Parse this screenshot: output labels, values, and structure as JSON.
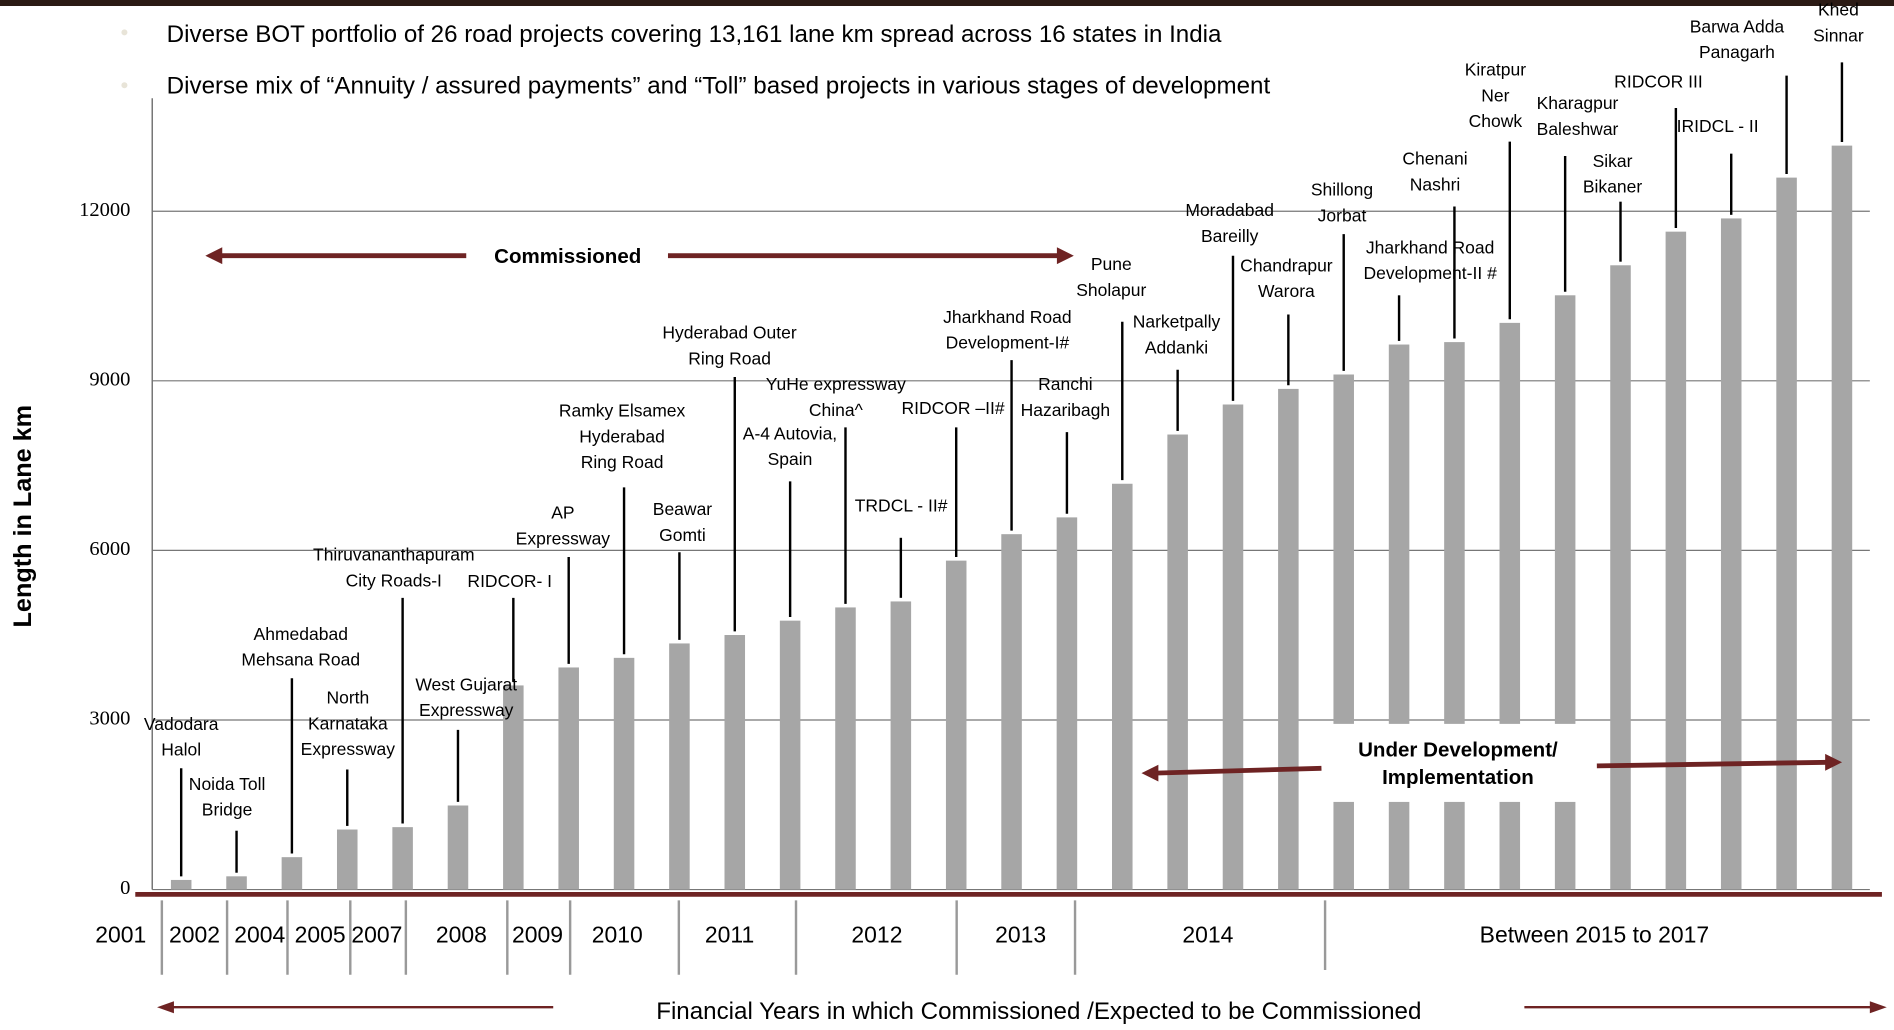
{
  "chart_data": {
    "type": "bar",
    "notes": [
      "Diverse BOT portfolio of 26 road projects covering 13,161 lane km spread across 16 states in India",
      "Diverse mix of “Annuity / assured payments” and “Toll” based  projects in various stages of development"
    ],
    "y_label": "Length in Lane km",
    "x_label": "Financial Years in which Commissioned /Expected to be Commissioned",
    "annotations": [
      "Commissioned",
      "Under Development/",
      "Implementation"
    ],
    "color": "#a6a6a6",
    "grid": true,
    "ylim": [
      0,
      14000
    ],
    "yticks": [
      0,
      3000,
      6000,
      9000,
      12000
    ],
    "bar_labels": [
      [
        "Vadodara",
        "Halol"
      ],
      [
        "Noida Toll",
        "Bridge"
      ],
      [
        "Ahmedabad",
        "Mehsana Road"
      ],
      [
        "North",
        "Karnataka",
        "Expressway"
      ],
      [
        "Thiruvananthapuram",
        "City Roads-I"
      ],
      [
        "West Gujarat",
        "Expressway"
      ],
      [
        "RIDCOR- I"
      ],
      [
        "AP",
        "Expressway"
      ],
      [
        "Ramky Elsamex",
        "Hyderabad",
        "Ring Road"
      ],
      [
        "Beawar",
        "Gomti"
      ],
      [
        "Hyderabad Outer",
        "Ring Road"
      ],
      [
        "A-4 Autovia,",
        "Spain"
      ],
      [
        "YuHe expressway",
        "China^"
      ],
      [
        "TRDCL - II#"
      ],
      [
        "RIDCOR –II#"
      ],
      [
        "Jharkhand Road",
        "Development-I#"
      ],
      [
        "Ranchi",
        "Hazaribagh"
      ],
      [
        "Pune",
        "Sholapur"
      ],
      [
        "Narketpally",
        "Addanki"
      ],
      [
        "Moradabad",
        "Bareilly"
      ],
      [
        "Chandrapur",
        "Warora"
      ],
      [
        "Shillong",
        "Jorbat"
      ],
      [
        "Jharkhand Road",
        "Development-II #"
      ],
      [
        "Chenani",
        "Nashri"
      ],
      [
        "Kiratpur",
        "Ner",
        "Chowk"
      ],
      [
        "Kharagpur",
        "Baleshwar"
      ],
      [
        "Sikar",
        "Bikaner"
      ],
      [
        "RIDCOR III"
      ],
      [
        "IRIDCL - II"
      ],
      [
        "Barwa Adda",
        "Panagarh"
      ],
      [
        "Khed",
        "Sinnar"
      ]
    ],
    "values": [
      170,
      234,
      573,
      1062,
      1104,
      1487,
      3611,
      3929,
      4099,
      4354,
      4503,
      4757,
      4991,
      5097,
      5819,
      6287,
      6584,
      7179,
      8050,
      8581,
      8857,
      9112,
      9642,
      9685,
      10025,
      10513,
      11044,
      11639,
      11873,
      12595,
      13161
    ],
    "years": [
      "2001",
      "2002",
      "2004",
      "2005",
      "2007",
      "2008",
      "2009",
      "2010",
      "2011",
      "2012",
      "2013",
      "2014",
      "Between 2015 to 2017"
    ]
  }
}
